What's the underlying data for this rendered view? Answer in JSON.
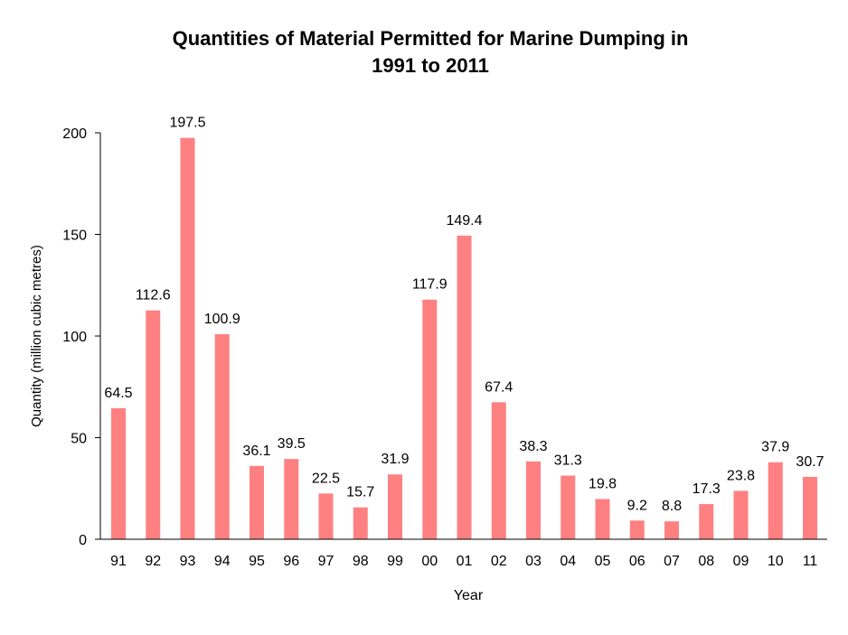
{
  "chart_data": {
    "type": "bar",
    "title_lines": [
      "Quantities of Material Permitted for Marine Dumping in",
      "1991 to 2011"
    ],
    "xlabel": "Year",
    "ylabel": "Quantity (million cubic metres)",
    "categories": [
      "91",
      "92",
      "93",
      "94",
      "95",
      "96",
      "97",
      "98",
      "99",
      "00",
      "01",
      "02",
      "03",
      "04",
      "05",
      "06",
      "07",
      "08",
      "09",
      "10",
      "11"
    ],
    "values": [
      64.5,
      112.6,
      197.5,
      100.9,
      36.1,
      39.5,
      22.5,
      15.7,
      31.9,
      117.9,
      149.4,
      67.4,
      38.3,
      31.3,
      19.8,
      9.2,
      8.8,
      17.3,
      23.8,
      37.9,
      30.7
    ],
    "data_labels": [
      "64.5",
      "112.6",
      "197.5",
      "100.9",
      "36.1",
      "39.5",
      "22.5",
      "15.7",
      "31.9",
      "117.9",
      "149.4",
      "67.4",
      "38.3",
      "31.3",
      "19.8",
      "9.2",
      "8.8",
      "17.3",
      "23.8",
      "37.9",
      "30.7"
    ],
    "ylim": [
      0,
      200
    ],
    "yticks": [
      "0",
      "50",
      "100",
      "150",
      "200"
    ],
    "grid": false,
    "legend": "none",
    "bar_color": "#FF8080"
  }
}
